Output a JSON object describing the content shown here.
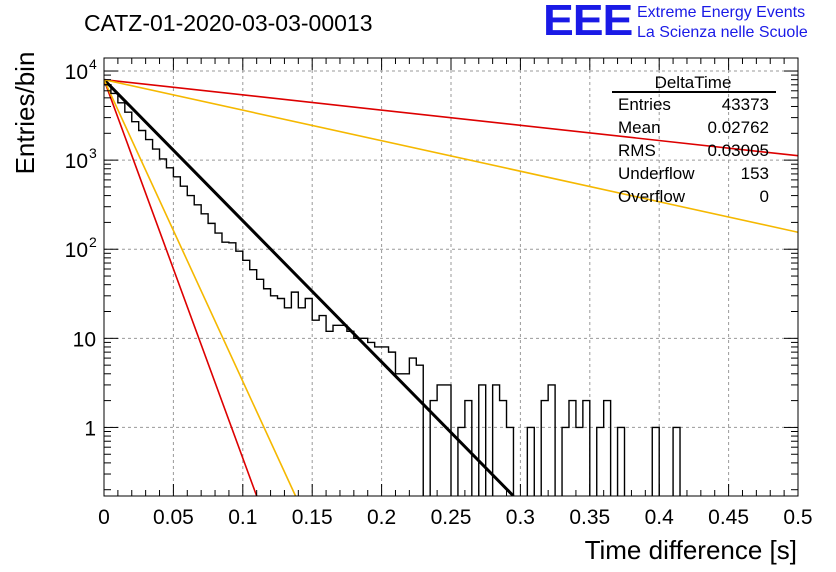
{
  "header": {
    "title": "CATZ-01-2020-03-03-00013"
  },
  "logo": {
    "mark": "EEE",
    "line1": "Extreme Energy Events",
    "line2": "La Scienza nelle Scuole",
    "color": "#1a1ae6"
  },
  "stats": {
    "title": "DeltaTime",
    "rows": [
      {
        "label": "Entries",
        "value": "43373"
      },
      {
        "label": "Mean",
        "value": "0.02762"
      },
      {
        "label": "RMS",
        "value": "0.03005"
      },
      {
        "label": "Underflow",
        "value": "153"
      },
      {
        "label": "Overflow",
        "value": "0"
      }
    ]
  },
  "chart_data": {
    "type": "line",
    "title": "CATZ-01-2020-03-03-00013",
    "xlabel": "Time difference [s]",
    "ylabel": "Entries/bin",
    "xlim": [
      0,
      0.5
    ],
    "ylim": [
      0.17,
      14000
    ],
    "log_y": true,
    "grid": true,
    "x_ticks": [
      "0",
      "0.05",
      "0.1",
      "0.15",
      "0.2",
      "0.25",
      "0.3",
      "0.35",
      "0.4",
      "0.45",
      "0.5"
    ],
    "x_tick_values": [
      0,
      0.05,
      0.1,
      0.15,
      0.2,
      0.25,
      0.3,
      0.35,
      0.4,
      0.45,
      0.5
    ],
    "y_ticks": [
      {
        "value": 1,
        "base": "1",
        "exp": ""
      },
      {
        "value": 10,
        "base": "10",
        "exp": ""
      },
      {
        "value": 100,
        "base": "10",
        "exp": "2"
      },
      {
        "value": 1000,
        "base": "10",
        "exp": "3"
      },
      {
        "value": 10000,
        "base": "10",
        "exp": "4"
      }
    ],
    "histogram": {
      "bin_width": 0.005,
      "color": "#000000",
      "counts": [
        7000,
        5600,
        4400,
        3450,
        2700,
        2150,
        1700,
        1330,
        1030,
        820,
        650,
        510,
        400,
        315,
        250,
        195,
        152,
        120,
        118,
        95,
        75,
        59,
        46,
        36,
        30,
        28,
        22,
        33,
        22,
        28,
        16,
        18,
        12,
        14,
        14,
        12,
        10,
        10,
        9,
        8,
        8,
        7,
        4,
        4,
        6,
        5,
        0.1,
        2,
        3,
        3,
        0.1,
        1,
        2,
        0.1,
        3,
        0.1,
        3,
        2,
        1,
        0.1,
        0.1,
        1,
        0.1,
        2,
        3,
        0.1,
        1,
        2,
        1,
        2,
        0.1,
        1,
        2,
        0.1,
        1,
        0.1,
        0.1,
        0.1,
        0.1,
        1,
        0.1,
        0.1,
        1,
        0.1,
        0.1,
        0.1,
        0.1,
        0.1,
        0.1,
        0.1,
        0.1,
        0.1,
        0.1,
        0.1,
        0.1,
        0.1,
        0.1,
        0.1,
        0.1,
        0.1
      ]
    },
    "series": [
      {
        "color": "#000000",
        "x": [
          0,
          0.295
        ],
        "y": [
          8000,
          0.17
        ],
        "width": 3
      },
      {
        "color": "#dd0000",
        "x": [
          0,
          0.5
        ],
        "y": [
          8000,
          1120
        ],
        "width": 1.6
      },
      {
        "color": "#dd0000",
        "x": [
          0,
          0.11
        ],
        "y": [
          8000,
          0.17
        ],
        "width": 1.6
      },
      {
        "color": "#f5b800",
        "x": [
          0,
          0.5
        ],
        "y": [
          8000,
          155
        ],
        "width": 1.6
      },
      {
        "color": "#f5b800",
        "x": [
          0,
          0.138
        ],
        "y": [
          8000,
          0.17
        ],
        "width": 1.6
      }
    ]
  }
}
